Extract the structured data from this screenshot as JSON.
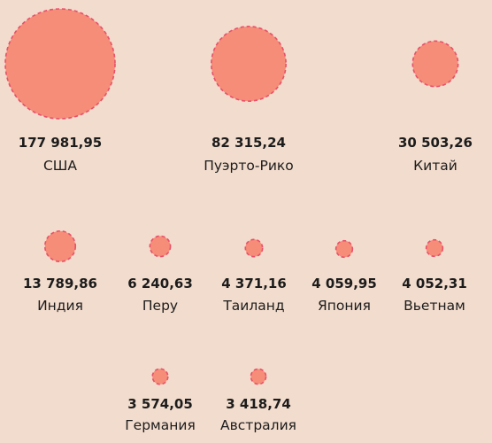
{
  "chart_data": {
    "type": "bubble",
    "style": {
      "bubble_fill": "#f58d78",
      "bubble_stroke": "#e8506a",
      "background": "#f2dccd",
      "text_color": "#1c1c1c"
    },
    "items": [
      {
        "label": "США",
        "value_text": "177 981,95",
        "value": 177981.95
      },
      {
        "label": "Пуэрто-Рико",
        "value_text": "82 315,24",
        "value": 82315.24
      },
      {
        "label": "Китай",
        "value_text": "30 503,26",
        "value": 30503.26
      },
      {
        "label": "Индия",
        "value_text": "13 789,86",
        "value": 13789.86
      },
      {
        "label": "Перу",
        "value_text": "6 240,63",
        "value": 6240.63
      },
      {
        "label": "Таиланд",
        "value_text": "4 371,16",
        "value": 4371.16
      },
      {
        "label": "Япония",
        "value_text": "4 059,95",
        "value": 4059.95
      },
      {
        "label": "Вьетнам",
        "value_text": "4 052,31",
        "value": 4052.31
      },
      {
        "label": "Германия",
        "value_text": "3 574,05",
        "value": 3574.05
      },
      {
        "label": "Австралия",
        "value_text": "3 418,74",
        "value": 3418.74
      }
    ]
  }
}
